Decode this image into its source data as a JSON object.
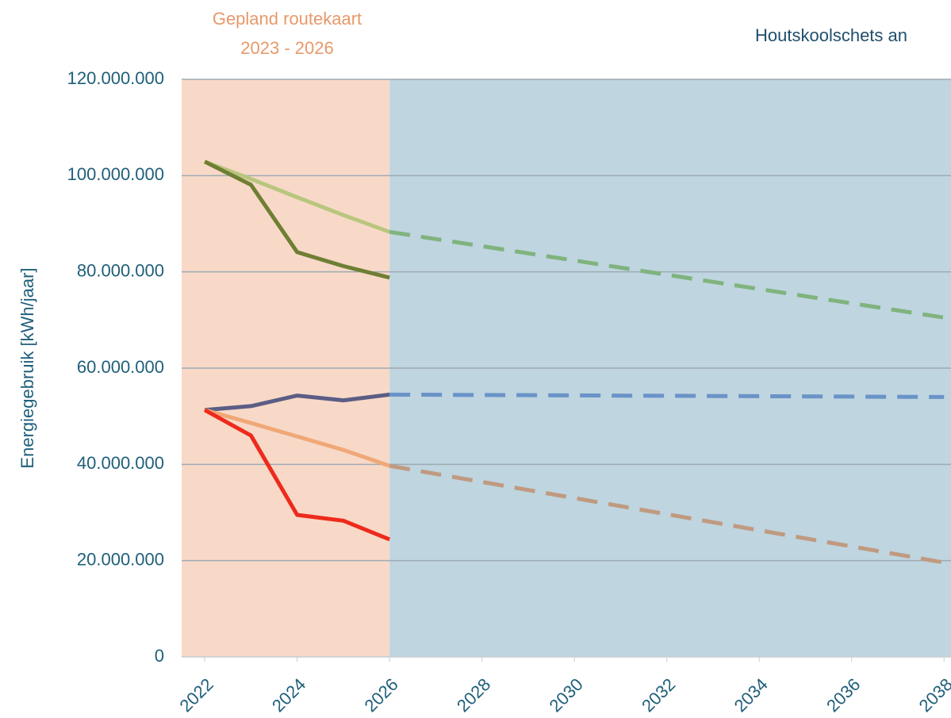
{
  "chart_data": {
    "type": "line",
    "annotations": [
      "Gepland  routekaart",
      "2023 - 2026",
      "Houtskoolschets an"
    ],
    "ylabel": "Energiegebruik [kWh/jaar]",
    "xlim": [
      2021.5,
      2038.15
    ],
    "xticks": [
      2022,
      2024,
      2026,
      2028,
      2030,
      2032,
      2034,
      2036,
      2038
    ],
    "ylim": [
      0,
      120000000
    ],
    "yticks": [
      0,
      {
        "value": 20000000,
        "label": "20.000.000"
      },
      {
        "value": 40000000,
        "label": "40.000.000"
      },
      {
        "value": 60000000,
        "label": "60.000.000"
      },
      {
        "value": 80000000,
        "label": "80.000.000"
      },
      {
        "value": 100000000,
        "label": "100.000.000"
      },
      {
        "value": 120000000,
        "label": "120.000.000"
      }
    ],
    "grid": true,
    "bands": [
      {
        "from": 2021.5,
        "to": 2026,
        "color": "#f8d9c8"
      },
      {
        "from": 2026,
        "to": 2038.15,
        "color": "#bfd5e0"
      }
    ],
    "series": [
      {
        "color": "#b9c67e",
        "dashed": false,
        "x": [
          2022,
          2023,
          2024,
          2025,
          2026
        ],
        "values": [
          102900000,
          99300000,
          95500000,
          91800000,
          88300000
        ]
      },
      {
        "color": "#6e7f33",
        "dashed": false,
        "x": [
          2022,
          2023,
          2024,
          2025,
          2026
        ],
        "values": [
          102900000,
          98100000,
          84100000,
          81200000,
          78800000
        ]
      },
      {
        "color": "#80b37e",
        "dashed": true,
        "x": [
          2026,
          2038
        ],
        "values": [
          88300000,
          70500000
        ]
      },
      {
        "color": "#5b5d85",
        "dashed": false,
        "x": [
          2022,
          2023,
          2024,
          2025,
          2026
        ],
        "values": [
          51300000,
          52100000,
          54300000,
          53300000,
          54500000
        ]
      },
      {
        "color": "#6a93c8",
        "dashed": true,
        "x": [
          2026,
          2038
        ],
        "values": [
          54500000,
          54000000
        ]
      },
      {
        "color": "#f0a878",
        "dashed": false,
        "x": [
          2022,
          2023,
          2024,
          2025,
          2026
        ],
        "values": [
          51300000,
          48600000,
          45800000,
          43000000,
          39700000
        ]
      },
      {
        "color": "#c09a80",
        "dashed": true,
        "x": [
          2026,
          2038
        ],
        "values": [
          39700000,
          19600000
        ]
      },
      {
        "color": "#ee2a1c",
        "dashed": false,
        "x": [
          2022,
          2023,
          2024,
          2025,
          2026
        ],
        "values": [
          51300000,
          46000000,
          29500000,
          28300000,
          24400000
        ]
      }
    ]
  }
}
